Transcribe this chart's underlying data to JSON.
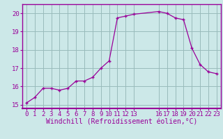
{
  "x": [
    0,
    1,
    2,
    3,
    4,
    5,
    6,
    7,
    8,
    9,
    10,
    11,
    12,
    13,
    16,
    17,
    18,
    19,
    20,
    21,
    22,
    23
  ],
  "y": [
    15.1,
    15.4,
    15.9,
    15.9,
    15.8,
    15.9,
    16.3,
    16.3,
    16.5,
    17.0,
    17.4,
    19.75,
    19.85,
    19.95,
    20.1,
    20.0,
    19.75,
    19.65,
    18.1,
    17.2,
    16.8,
    16.7
  ],
  "xlim": [
    -0.5,
    23.5
  ],
  "ylim": [
    14.8,
    20.5
  ],
  "yticks": [
    15,
    16,
    17,
    18,
    19,
    20
  ],
  "xticks": [
    0,
    1,
    2,
    3,
    4,
    5,
    6,
    7,
    8,
    9,
    10,
    11,
    12,
    13,
    16,
    17,
    18,
    19,
    20,
    21,
    22,
    23
  ],
  "xlabel": "Windchill (Refroidissement éolien,°C)",
  "line_color": "#990099",
  "marker": "+",
  "bg_color": "#cce8e8",
  "grid_color": "#99bbbb",
  "tick_fontsize": 6.5,
  "xlabel_fontsize": 7.0
}
